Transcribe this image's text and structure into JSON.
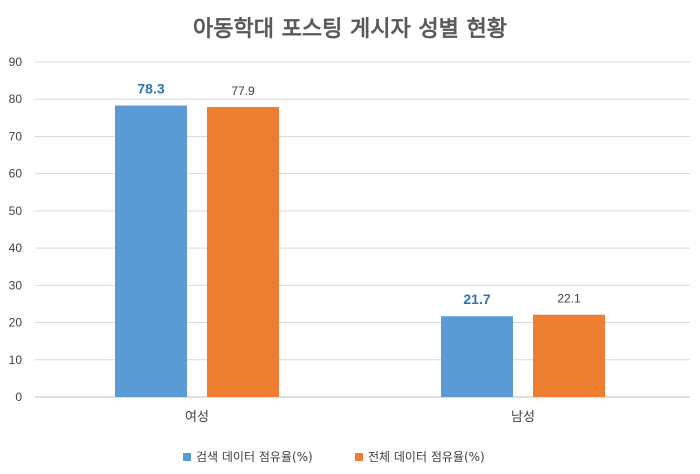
{
  "chart_data": {
    "type": "bar",
    "title": "아동학대 포스팅 게시자 성별 현황",
    "categories": [
      "여성",
      "남성"
    ],
    "series": [
      {
        "name": "검색 데이터 점유율(%)",
        "values": [
          78.3,
          21.7
        ],
        "color": "#5B9BD5",
        "label_color": "#2E75B6",
        "label_bold": true
      },
      {
        "name": "전체 데이터 점유율(%)",
        "values": [
          77.9,
          22.1
        ],
        "color": "#ED7D31",
        "label_color": "#404040",
        "label_bold": false
      }
    ],
    "yticks": [
      "0",
      "10",
      "20",
      "30",
      "40",
      "50",
      "60",
      "70",
      "80",
      "90"
    ],
    "ylim": [
      0,
      90
    ],
    "grid": true,
    "legend_position": "bottom"
  }
}
